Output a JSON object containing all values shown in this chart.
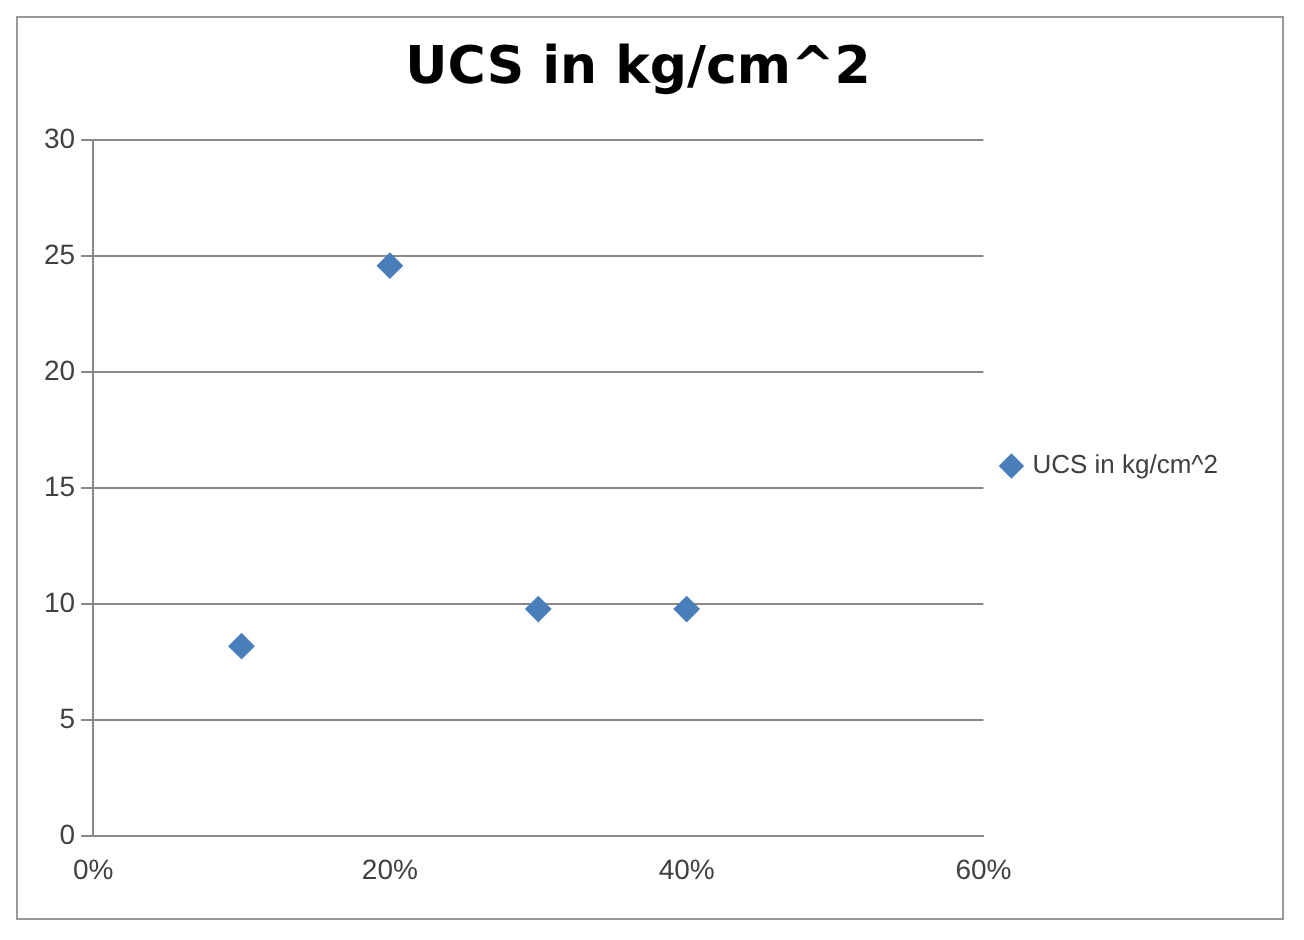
{
  "chart_data": {
    "type": "scatter",
    "title": "UCS in kg/cm^2",
    "x": [
      0.1,
      0.2,
      0.3,
      0.4
    ],
    "series": [
      {
        "name": "UCS in kg/cm^2",
        "color": "#4a7ebb",
        "values": [
          8.2,
          24.6,
          9.8,
          9.8
        ]
      }
    ],
    "xlim": [
      0,
      0.6
    ],
    "xticks": [
      {
        "value": 0,
        "label": "0%"
      },
      {
        "value": 0.2,
        "label": "20%"
      },
      {
        "value": 0.4,
        "label": "40%"
      },
      {
        "value": 0.6,
        "label": "60%"
      }
    ],
    "ylim": [
      0,
      30
    ],
    "yticks": [
      0,
      5,
      10,
      15,
      20,
      25,
      30
    ],
    "grid": "y",
    "legend": "right",
    "marker": "diamond"
  }
}
